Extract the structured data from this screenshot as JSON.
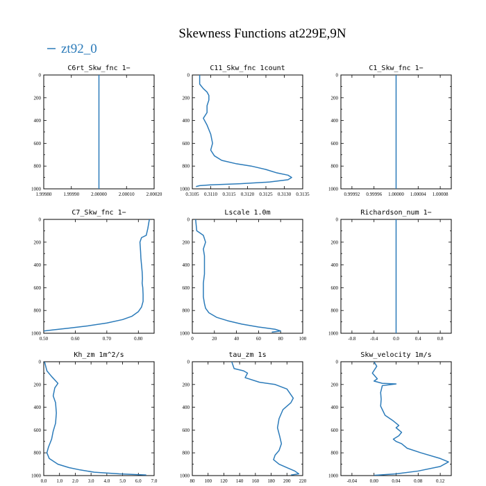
{
  "figure": {
    "title": "Skewness Functions at229E,9N",
    "legend_label": "zt92_0",
    "series_color": "#2a7ab9"
  },
  "chart_data": [
    {
      "type": "line",
      "title": "C6rt_Skw_fnc   1−",
      "xlim": [
        1.9998,
        2.0002
      ],
      "ylim": [
        1000,
        0
      ],
      "xticks": [
        "1.99980",
        "1.99990",
        "2.00000",
        "2.00010",
        "2.00020"
      ],
      "xtick_values": [
        1.9998,
        1.9999,
        2.0,
        2.0001,
        2.0002
      ],
      "yticks": [
        "0",
        "200",
        "400",
        "600",
        "800",
        "1000"
      ],
      "ytick_values": [
        0,
        200,
        400,
        600,
        800,
        1000
      ],
      "series": [
        {
          "x": [
            2.0,
            2.0
          ],
          "y": [
            0,
            1000
          ]
        }
      ]
    },
    {
      "type": "line",
      "title": "C11_Skw_fnc   1count",
      "xlim": [
        0.3105,
        0.3135
      ],
      "ylim": [
        1000,
        0
      ],
      "xticks": [
        "0.3105",
        "0.3110",
        "0.3115",
        "0.3120",
        "0.3125",
        "0.3130",
        "0.3135"
      ],
      "xtick_values": [
        0.3105,
        0.311,
        0.3115,
        0.312,
        0.3125,
        0.313,
        0.3135
      ],
      "yticks": [
        "0",
        "200",
        "400",
        "600",
        "800",
        "1000"
      ],
      "ytick_values": [
        0,
        200,
        400,
        600,
        800,
        1000
      ],
      "series": [
        {
          "x": [
            0.3107,
            0.3107,
            0.3108,
            0.3109,
            0.31095,
            0.31095,
            0.3109,
            0.3109,
            0.3108,
            0.3109,
            0.311,
            0.31105,
            0.311,
            0.3111,
            0.3113,
            0.3117,
            0.3121,
            0.3125,
            0.3128,
            0.3131,
            0.3132,
            0.3131,
            0.3126,
            0.3118,
            0.311,
            0.3107,
            0.3106
          ],
          "y": [
            0,
            80,
            120,
            150,
            180,
            220,
            270,
            330,
            380,
            440,
            520,
            600,
            660,
            710,
            750,
            780,
            800,
            830,
            860,
            880,
            900,
            920,
            940,
            955,
            965,
            972,
            980
          ]
        }
      ]
    },
    {
      "type": "line",
      "title": "C1_Skw_fnc   1−",
      "xlim": [
        0.9999,
        1.0001
      ],
      "ylim": [
        1000,
        0
      ],
      "xticks": [
        "0.99992",
        "0.99996",
        "1.00000",
        "1.00004",
        "1.00008"
      ],
      "xtick_values": [
        0.99992,
        0.99996,
        1.0,
        1.00004,
        1.00008
      ],
      "yticks": [
        "0",
        "200",
        "400",
        "600",
        "800",
        "1000"
      ],
      "ytick_values": [
        0,
        200,
        400,
        600,
        800,
        1000
      ],
      "series": [
        {
          "x": [
            1.0,
            1.0
          ],
          "y": [
            0,
            1000
          ]
        }
      ]
    },
    {
      "type": "line",
      "title": "C7_Skw_fnc   1−",
      "xlim": [
        0.5,
        0.85
      ],
      "ylim": [
        1000,
        0
      ],
      "xticks": [
        "0.50",
        "0.60",
        "0.70",
        "0.80"
      ],
      "xtick_values": [
        0.5,
        0.6,
        0.7,
        0.8
      ],
      "yticks": [
        "0",
        "200",
        "400",
        "600",
        "800",
        "1000"
      ],
      "ytick_values": [
        0,
        200,
        400,
        600,
        800,
        1000
      ],
      "series": [
        {
          "x": [
            0.835,
            0.833,
            0.83,
            0.825,
            0.81,
            0.805,
            0.807,
            0.808,
            0.81,
            0.812,
            0.813,
            0.812,
            0.814,
            0.815,
            0.815,
            0.81,
            0.8,
            0.78,
            0.75,
            0.7,
            0.64,
            0.58,
            0.53,
            0.5
          ],
          "y": [
            0,
            30,
            80,
            140,
            160,
            200,
            280,
            340,
            400,
            460,
            520,
            560,
            600,
            660,
            720,
            770,
            810,
            850,
            880,
            910,
            935,
            955,
            970,
            980
          ]
        }
      ]
    },
    {
      "type": "line",
      "title": "Lscale   1.0m",
      "xlim": [
        0,
        100
      ],
      "ylim": [
        1000,
        0
      ],
      "xticks": [
        "0",
        "20",
        "40",
        "60",
        "80",
        "100"
      ],
      "xtick_values": [
        0,
        20,
        40,
        60,
        80,
        100
      ],
      "yticks": [
        "0",
        "200",
        "400",
        "600",
        "800",
        "1000"
      ],
      "ytick_values": [
        0,
        200,
        400,
        600,
        800,
        1000
      ],
      "series": [
        {
          "x": [
            3,
            4,
            7,
            10,
            12,
            10,
            11,
            11,
            11,
            10,
            10,
            10,
            11,
            12,
            15,
            22,
            32,
            45,
            60,
            75,
            80,
            72
          ],
          "y": [
            0,
            100,
            120,
            140,
            200,
            260,
            320,
            400,
            480,
            560,
            620,
            680,
            740,
            780,
            820,
            860,
            890,
            920,
            945,
            965,
            980,
            990
          ]
        }
      ]
    },
    {
      "type": "line",
      "title": "Richardson_num   1−",
      "xlim": [
        -1.0,
        1.0
      ],
      "ylim": [
        1000,
        0
      ],
      "xticks": [
        "-0.8",
        "-0.4",
        "0.0",
        "0.4",
        "0.8"
      ],
      "xtick_values": [
        -0.8,
        -0.4,
        0.0,
        0.4,
        0.8
      ],
      "yticks": [
        "0",
        "200",
        "400",
        "600",
        "800",
        "1000"
      ],
      "ytick_values": [
        0,
        200,
        400,
        600,
        800,
        1000
      ],
      "series": [
        {
          "x": [
            0.0,
            0.0
          ],
          "y": [
            0,
            1000
          ]
        }
      ]
    },
    {
      "type": "line",
      "title": "Kh_zm   1m^2/s",
      "xlim": [
        0,
        7.0
      ],
      "ylim": [
        1000,
        0
      ],
      "xticks": [
        "0.0",
        "1.0",
        "2.0",
        "3.0",
        "4.0",
        "5.0",
        "6.0",
        "7.0"
      ],
      "xtick_values": [
        0,
        1,
        2,
        3,
        4,
        5,
        6,
        7
      ],
      "yticks": [
        "0",
        "200",
        "400",
        "600",
        "800",
        "1000"
      ],
      "ytick_values": [
        0,
        200,
        400,
        600,
        800,
        1000
      ],
      "series": [
        {
          "x": [
            0.05,
            0.2,
            0.5,
            0.9,
            0.7,
            0.6,
            0.75,
            0.8,
            0.75,
            0.6,
            0.5,
            0.3,
            0.2,
            0.35,
            0.9,
            1.6,
            2.3,
            3.2,
            4.8,
            6.5
          ],
          "y": [
            0,
            80,
            130,
            190,
            230,
            300,
            360,
            450,
            540,
            610,
            680,
            750,
            800,
            850,
            900,
            930,
            950,
            970,
            985,
            995
          ]
        }
      ]
    },
    {
      "type": "line",
      "title": "tau_zm   1s",
      "xlim": [
        80,
        220
      ],
      "ylim": [
        1000,
        0
      ],
      "xticks": [
        "80",
        "100",
        "120",
        "140",
        "160",
        "180",
        "200",
        "220"
      ],
      "xtick_values": [
        80,
        100,
        120,
        140,
        160,
        180,
        200,
        220
      ],
      "yticks": [
        "0",
        "200",
        "400",
        "600",
        "800",
        "1000"
      ],
      "ytick_values": [
        0,
        200,
        400,
        600,
        800,
        1000
      ],
      "series": [
        {
          "x": [
            130,
            133,
            145,
            150,
            147,
            165,
            185,
            200,
            208,
            205,
            195,
            190,
            188,
            191,
            193,
            190,
            185,
            183,
            190,
            200,
            210,
            215,
            205
          ],
          "y": [
            0,
            60,
            80,
            100,
            140,
            180,
            200,
            240,
            320,
            360,
            420,
            500,
            580,
            660,
            720,
            780,
            820,
            860,
            900,
            930,
            960,
            985,
            995
          ]
        }
      ]
    },
    {
      "type": "line",
      "title": "Skw_velocity   1m/s",
      "xlim": [
        -0.06,
        0.14
      ],
      "ylim": [
        1000,
        0
      ],
      "xticks": [
        "-0.04",
        "0.00",
        "0.04",
        "0.08",
        "0.12"
      ],
      "xtick_values": [
        -0.04,
        0.0,
        0.04,
        0.08,
        0.12
      ],
      "yticks": [
        "0",
        "200",
        "400",
        "600",
        "800",
        "1000"
      ],
      "ytick_values": [
        0,
        200,
        400,
        600,
        800,
        1000
      ],
      "series": [
        {
          "x": [
            0.0,
            0.005,
            -0.003,
            0.006,
            0.0,
            0.015,
            0.04,
            0.015,
            0.012,
            0.013,
            0.012,
            0.015,
            0.02,
            0.035,
            0.045,
            0.04,
            0.05,
            0.045,
            0.035,
            0.04,
            0.05,
            0.06,
            0.085,
            0.12,
            0.135,
            0.12,
            0.08,
            0.04,
            0.0
          ],
          "y": [
            0,
            40,
            100,
            150,
            170,
            190,
            195,
            210,
            270,
            330,
            390,
            420,
            470,
            520,
            560,
            580,
            620,
            650,
            680,
            700,
            720,
            760,
            800,
            850,
            880,
            920,
            960,
            985,
            998
          ]
        }
      ]
    }
  ]
}
